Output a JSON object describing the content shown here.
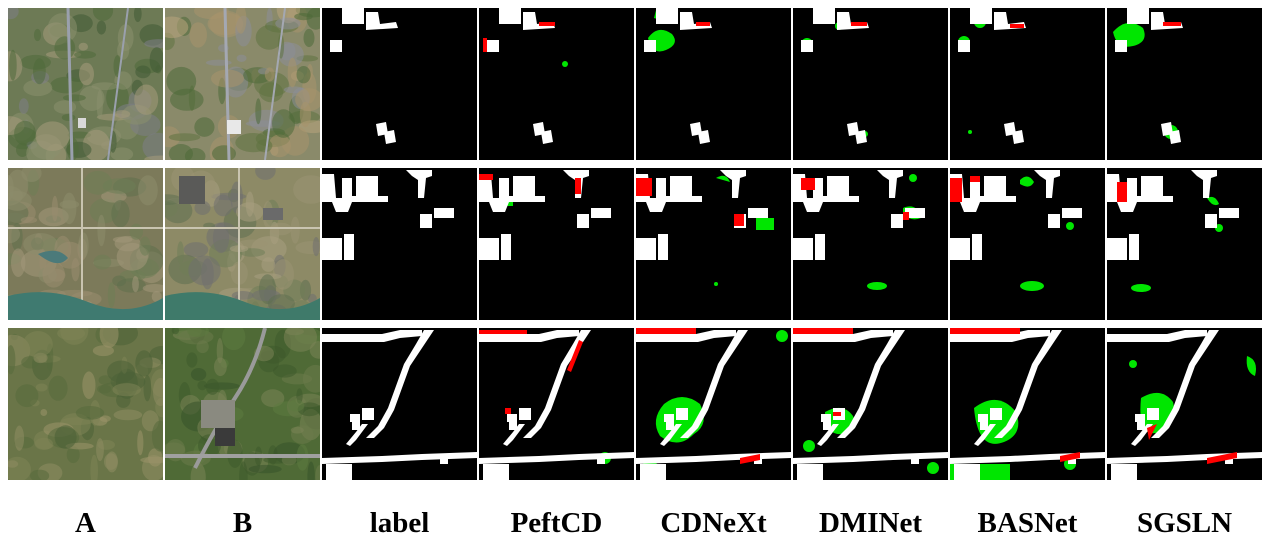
{
  "columns": [
    {
      "label": "A",
      "kind": "image-a"
    },
    {
      "label": "B",
      "kind": "image-b"
    },
    {
      "label": "label",
      "kind": "mask"
    },
    {
      "label": "PeftCD",
      "kind": "prediction"
    },
    {
      "label": "CDNeXt",
      "kind": "prediction"
    },
    {
      "label": "DMINet",
      "kind": "prediction"
    },
    {
      "label": "BASNet",
      "kind": "prediction"
    },
    {
      "label": "SGSLN",
      "kind": "prediction"
    }
  ],
  "rows": [
    {
      "id": "sample-1",
      "scene": "dense-urban"
    },
    {
      "id": "sample-2",
      "scene": "construction-site-lake"
    },
    {
      "id": "sample-3",
      "scene": "hills-with-road"
    }
  ],
  "colors": {
    "background": "#000000",
    "true_positive": "#ffffff",
    "false_positive": "#00e600",
    "false_negative": "#ff0000",
    "separator": "#ffffff"
  }
}
